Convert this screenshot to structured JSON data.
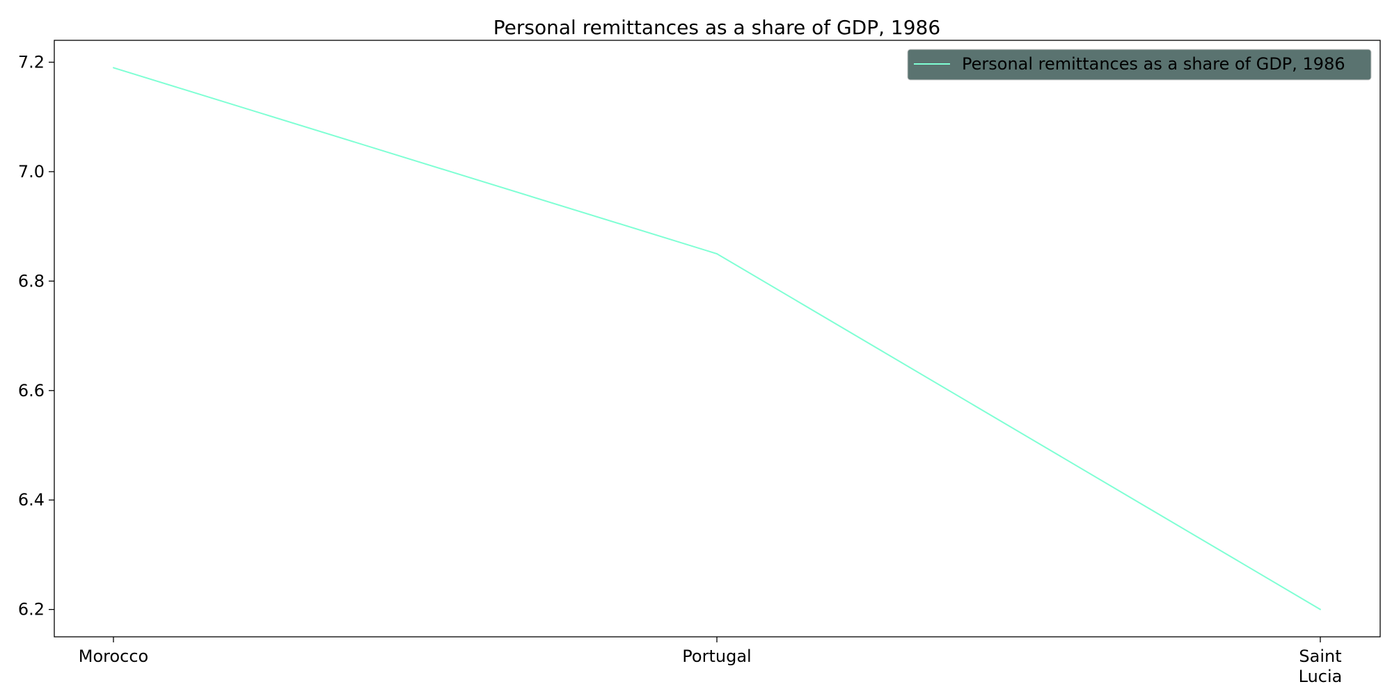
{
  "chart_data": {
    "type": "line",
    "title": "Personal remittances as a share of GDP, 1986",
    "xlabel": "",
    "ylabel": "",
    "categories": [
      "Morocco",
      "Portugal",
      "Saint Lucia"
    ],
    "tick_labels": [
      [
        "Morocco"
      ],
      [
        "Portugal"
      ],
      [
        "Saint",
        "Lucia"
      ]
    ],
    "series": [
      {
        "name": "Personal remittances as a share of GDP, 1986",
        "values": [
          7.19,
          6.85,
          6.2
        ],
        "color": "#7fffd4"
      }
    ],
    "ylim": [
      6.15,
      7.24
    ],
    "yticks": [
      6.2,
      6.4,
      6.6,
      6.8,
      7.0,
      7.2
    ],
    "ytick_labels": [
      "6.2",
      "6.4",
      "6.6",
      "6.8",
      "7.0",
      "7.2"
    ],
    "grid": false,
    "legend_position": "top-right",
    "legend_background": "#5a7370"
  }
}
